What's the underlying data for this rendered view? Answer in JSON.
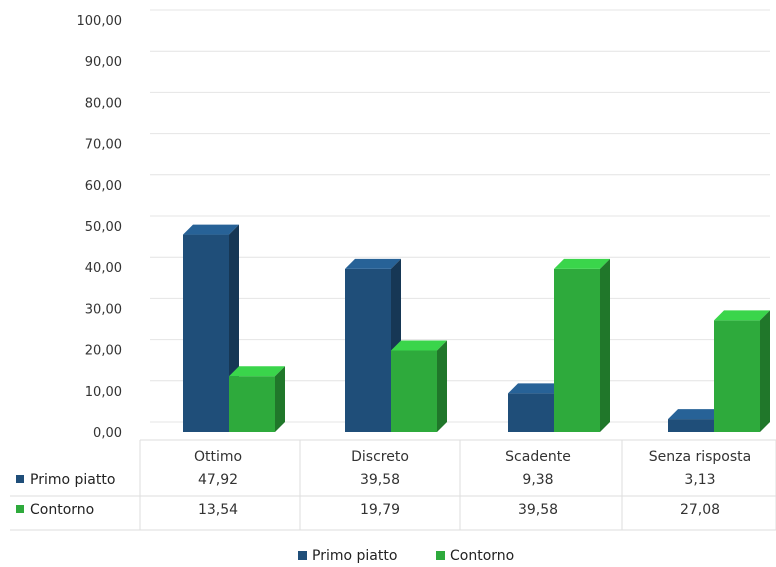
{
  "chart_data": {
    "type": "bar",
    "categories": [
      "Ottimo",
      "Discreto",
      "Scadente",
      "Senza risposta"
    ],
    "series": [
      {
        "name": "Primo piatto",
        "values": [
          47.92,
          39.58,
          9.38,
          3.13
        ],
        "labels": [
          "47,92",
          "39,58",
          "9,38",
          "3,13"
        ],
        "color": "#1f4e79"
      },
      {
        "name": "Contorno",
        "values": [
          13.54,
          19.79,
          39.58,
          27.08
        ],
        "labels": [
          "13,54",
          "19,79",
          "39,58",
          "27,08"
        ],
        "color": "#2eaa3c"
      }
    ],
    "ylim": [
      0,
      100
    ],
    "yticks": [
      "0,00",
      "10,00",
      "20,00",
      "30,00",
      "40,00",
      "50,00",
      "60,00",
      "70,00",
      "80,00",
      "90,00",
      "100,00"
    ],
    "gridlines": true,
    "legend": "bottom",
    "data_table": true
  }
}
